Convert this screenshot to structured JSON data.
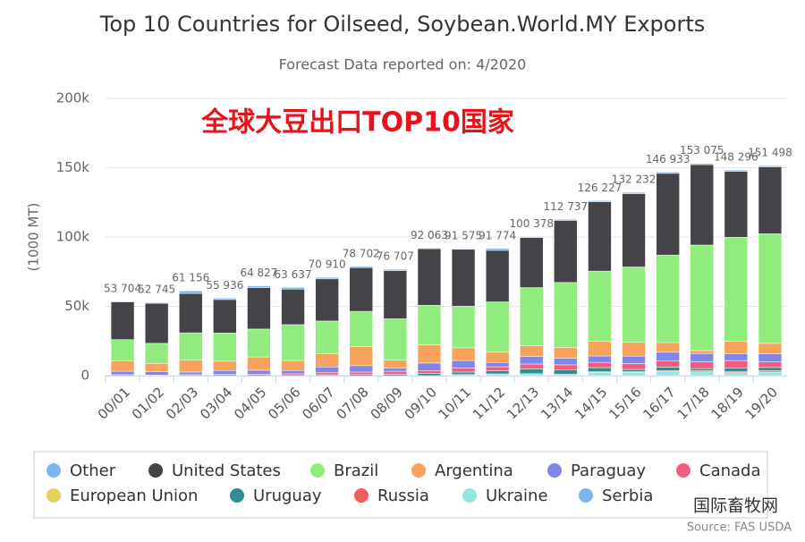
{
  "chart_data": {
    "type": "bar",
    "stacked": true,
    "title": "Top 10 Countries for Oilseed, Soybean.World.MY Exports",
    "subtitle": "Forecast Data reported on: 4/2020",
    "y_axis_label": "(1000 MT)",
    "annotations": [
      "全球大豆出口TOP10国家",
      "国际畜牧网",
      "Source: FAS USDA"
    ],
    "categories": [
      "00/01",
      "01/02",
      "02/03",
      "03/04",
      "04/05",
      "05/06",
      "06/07",
      "07/08",
      "08/09",
      "09/10",
      "10/11",
      "11/12",
      "12/13",
      "13/14",
      "14/15",
      "15/16",
      "16/17",
      "17/18",
      "18/19",
      "19/20"
    ],
    "ylim": [
      0,
      200000
    ],
    "yticks": [
      {
        "value": 0,
        "label": "0"
      },
      {
        "value": 50000,
        "label": "50k"
      },
      {
        "value": 100000,
        "label": "100k"
      },
      {
        "value": 150000,
        "label": "150k"
      },
      {
        "value": 200000,
        "label": "200k"
      }
    ],
    "grid": true,
    "legend": "bottom",
    "totals": {
      "values": [
        53704,
        52745,
        61156,
        55936,
        64827,
        63637,
        70910,
        78702,
        76707,
        92063,
        91575,
        91774,
        100378,
        112737,
        126227,
        132232,
        146933,
        153075,
        148296,
        151498
      ],
      "value_labels": [
        "53 704",
        "52 745",
        "61 156",
        "55 936",
        "64 827",
        "63 637",
        "70 910",
        "78 702",
        "76 707",
        "92 063",
        "91 575",
        "91 774",
        "100 378",
        "112 737",
        "126 227",
        "132 232",
        "146 933",
        "153 075",
        "148 296",
        "151 498"
      ]
    },
    "series": [
      {
        "name": "Other",
        "color": "#7cb5ec",
        "values": [
          600,
          500,
          1800,
          1000,
          1300,
          1200,
          1100,
          800,
          900,
          500,
          500,
          1400,
          700,
          700,
          700,
          900,
          1000,
          800,
          900,
          900
        ]
      },
      {
        "name": "United States",
        "color": "#434348",
        "values": [
          27100,
          28900,
          28400,
          24100,
          29900,
          25600,
          30400,
          31500,
          34800,
          40800,
          41000,
          37200,
          36100,
          44800,
          50100,
          52900,
          58900,
          58000,
          47600,
          48300
        ]
      },
      {
        "name": "Brazil",
        "color": "#90ed7d",
        "values": [
          15500,
          14500,
          19700,
          20400,
          20100,
          25900,
          23500,
          25400,
          29900,
          28600,
          30000,
          36300,
          41900,
          46800,
          50600,
          54400,
          63100,
          76100,
          74900,
          79000
        ]
      },
      {
        "name": "Argentina",
        "color": "#f7a35c",
        "values": [
          7300,
          6000,
          8600,
          6700,
          9600,
          7200,
          9600,
          13800,
          5600,
          13100,
          9200,
          7400,
          7700,
          7800,
          10600,
          9900,
          7000,
          2100,
          9100,
          7600
        ]
      },
      {
        "name": "Paraguay",
        "color": "#8085e9",
        "values": [
          2500,
          2400,
          1900,
          2800,
          2900,
          2400,
          3900,
          4600,
          2300,
          5400,
          5400,
          3100,
          5500,
          4800,
          4600,
          5400,
          6100,
          6000,
          4900,
          5800
        ]
      },
      {
        "name": "Canada",
        "color": "#f15c80",
        "values": [
          700,
          400,
          700,
          900,
          1000,
          1300,
          1700,
          1800,
          2200,
          2200,
          2900,
          2900,
          3500,
          3500,
          3800,
          4200,
          4600,
          4900,
          5300,
          4000
        ]
      },
      {
        "name": "European Union",
        "color": "#e4d354",
        "values": [
          0,
          0,
          0,
          0,
          0,
          0,
          0,
          0,
          0,
          0,
          0,
          0,
          0,
          0,
          0,
          0,
          0,
          0,
          0,
          0
        ]
      },
      {
        "name": "Uruguay",
        "color": "#2b908f",
        "values": [
          0,
          0,
          0,
          0,
          0,
          0,
          700,
          800,
          1000,
          1500,
          1800,
          2200,
          3500,
          3300,
          3000,
          1600,
          2600,
          1500,
          2500,
          2300
        ]
      },
      {
        "name": "Russia",
        "color": "#f45b5b",
        "values": [
          0,
          0,
          0,
          0,
          0,
          0,
          0,
          0,
          0,
          0,
          0,
          0,
          0,
          0,
          400,
          500,
          700,
          900,
          900,
          1000
        ]
      },
      {
        "name": "Ukraine",
        "color": "#91e8e1",
        "values": [
          0,
          0,
          0,
          0,
          0,
          0,
          0,
          0,
          0,
          0,
          800,
          1300,
          1400,
          1000,
          2400,
          2400,
          2900,
          2700,
          2200,
          2600
        ]
      },
      {
        "name": "Serbia",
        "color": "#7cb5ec",
        "values": [
          0,
          0,
          0,
          0,
          0,
          0,
          0,
          0,
          0,
          0,
          0,
          0,
          0,
          0,
          0,
          0,
          0,
          0,
          0,
          0
        ]
      }
    ]
  }
}
